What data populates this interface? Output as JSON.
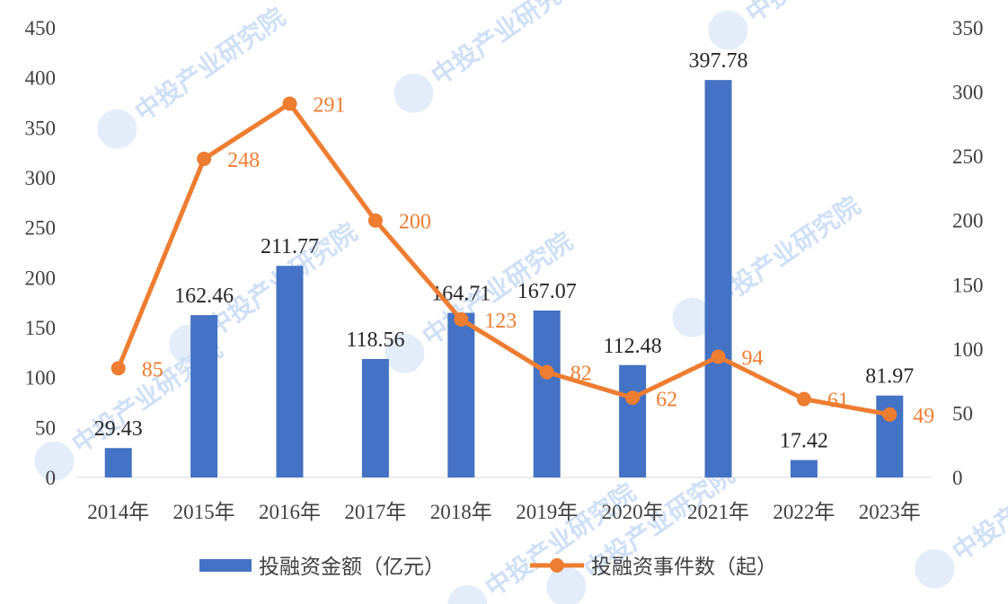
{
  "chart_data": {
    "type": "bar",
    "categories": [
      "2014年",
      "2015年",
      "2016年",
      "2017年",
      "2018年",
      "2019年",
      "2020年",
      "2021年",
      "2022年",
      "2023年"
    ],
    "series": [
      {
        "name": "投融资金额（亿元）",
        "type": "bar",
        "axis": "left",
        "color": "#4472c4",
        "values": [
          29.43,
          162.46,
          211.77,
          118.56,
          164.71,
          167.07,
          112.48,
          397.78,
          17.42,
          81.97
        ],
        "labels": [
          "29.43",
          "162.46",
          "211.77",
          "118.56",
          "164.71",
          "167.07",
          "112.48",
          "397.78",
          "17.42",
          "81.97"
        ]
      },
      {
        "name": "投融资事件数（起）",
        "type": "line",
        "axis": "right",
        "color": "#ed7d31",
        "values": [
          85,
          248,
          291,
          200,
          123,
          82,
          62,
          94,
          61,
          49
        ],
        "labels": [
          "85",
          "248",
          "291",
          "200",
          "123",
          "82",
          "62",
          "94",
          "61",
          "49"
        ]
      }
    ],
    "y_left": {
      "min": 0,
      "max": 450,
      "ticks": [
        "0",
        "50",
        "100",
        "150",
        "200",
        "250",
        "300",
        "350",
        "400",
        "450"
      ]
    },
    "y_right": {
      "min": 0,
      "max": 350,
      "ticks": [
        "0",
        "50",
        "100",
        "150",
        "200",
        "250",
        "300",
        "350"
      ]
    },
    "grid": false,
    "legend_position": "bottom",
    "watermark_text": "中投产业研究院"
  }
}
